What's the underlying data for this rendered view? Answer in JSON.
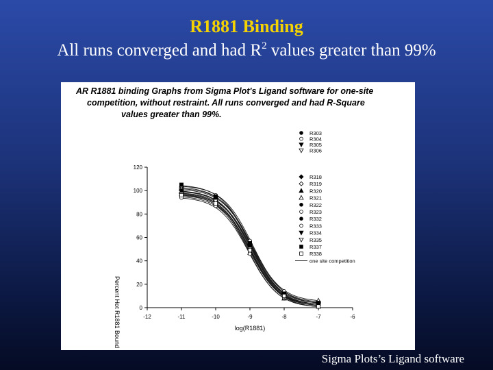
{
  "slide": {
    "title": "R1881 Binding",
    "subtitle_pre": "All runs converged and had R",
    "subtitle_sup": "2",
    "subtitle_post": " values greater than 99%",
    "credit": "Sigma Plots’s Ligand software"
  },
  "chart_data": {
    "type": "line",
    "title_lines": [
      "AR R1881 binding Graphs from Sigma Plot's Ligand software for one-site",
      "competition, without restraint.  All runs converged and had R-Square",
      "values greater than 99%."
    ],
    "xlabel": "log(R1881)",
    "ylabel": "Percent Hot R1881 Bound",
    "xlim": [
      -12,
      -6
    ],
    "ylim": [
      0,
      120
    ],
    "xticks": [
      -12,
      -11,
      -10,
      -9,
      -8,
      -7,
      -6
    ],
    "yticks": [
      0,
      20,
      40,
      60,
      80,
      100,
      120
    ],
    "x": [
      -11,
      -10,
      -9,
      -8,
      -7
    ],
    "legend_position": "upper-right",
    "fit_label": "one site competition",
    "series": [
      {
        "name": "R303",
        "marker": "circle-filled",
        "values": [
          98,
          92,
          52,
          11,
          3
        ]
      },
      {
        "name": "R304",
        "marker": "circle-open",
        "values": [
          101,
          94,
          55,
          13,
          5
        ]
      },
      {
        "name": "R305",
        "marker": "tri-down-filled",
        "values": [
          96,
          90,
          49,
          9,
          2
        ]
      },
      {
        "name": "R306",
        "marker": "tri-down-open",
        "values": [
          99,
          93,
          53,
          12,
          4
        ]
      },
      {
        "name": "R318",
        "marker": "diamond-filled",
        "values": [
          103,
          95,
          54,
          12,
          3
        ]
      },
      {
        "name": "R319",
        "marker": "diamond-open",
        "values": [
          100,
          91,
          51,
          10,
          2
        ]
      },
      {
        "name": "R320",
        "marker": "tri-up-filled",
        "values": [
          97,
          89,
          47,
          8,
          1
        ]
      },
      {
        "name": "R321",
        "marker": "tri-up-open",
        "values": [
          102,
          94,
          56,
          13,
          6
        ]
      },
      {
        "name": "R322",
        "marker": "circle-filled",
        "values": [
          95,
          88,
          48,
          9,
          2
        ]
      },
      {
        "name": "R323",
        "marker": "circle-open",
        "values": [
          104,
          96,
          57,
          14,
          4
        ]
      },
      {
        "name": "R332",
        "marker": "circle-filled",
        "values": [
          98,
          90,
          50,
          10,
          3
        ]
      },
      {
        "name": "R333",
        "marker": "circle-open",
        "values": [
          94,
          87,
          46,
          8,
          1
        ]
      },
      {
        "name": "R334",
        "marker": "tri-down-filled",
        "values": [
          100,
          92,
          52,
          11,
          2
        ]
      },
      {
        "name": "R335",
        "marker": "tri-down-open",
        "values": [
          97,
          91,
          50,
          9,
          3
        ]
      },
      {
        "name": "R337",
        "marker": "square-filled",
        "values": [
          105,
          95,
          55,
          12,
          4
        ]
      },
      {
        "name": "R338",
        "marker": "square-open",
        "values": [
          96,
          89,
          49,
          10,
          1
        ]
      }
    ]
  }
}
